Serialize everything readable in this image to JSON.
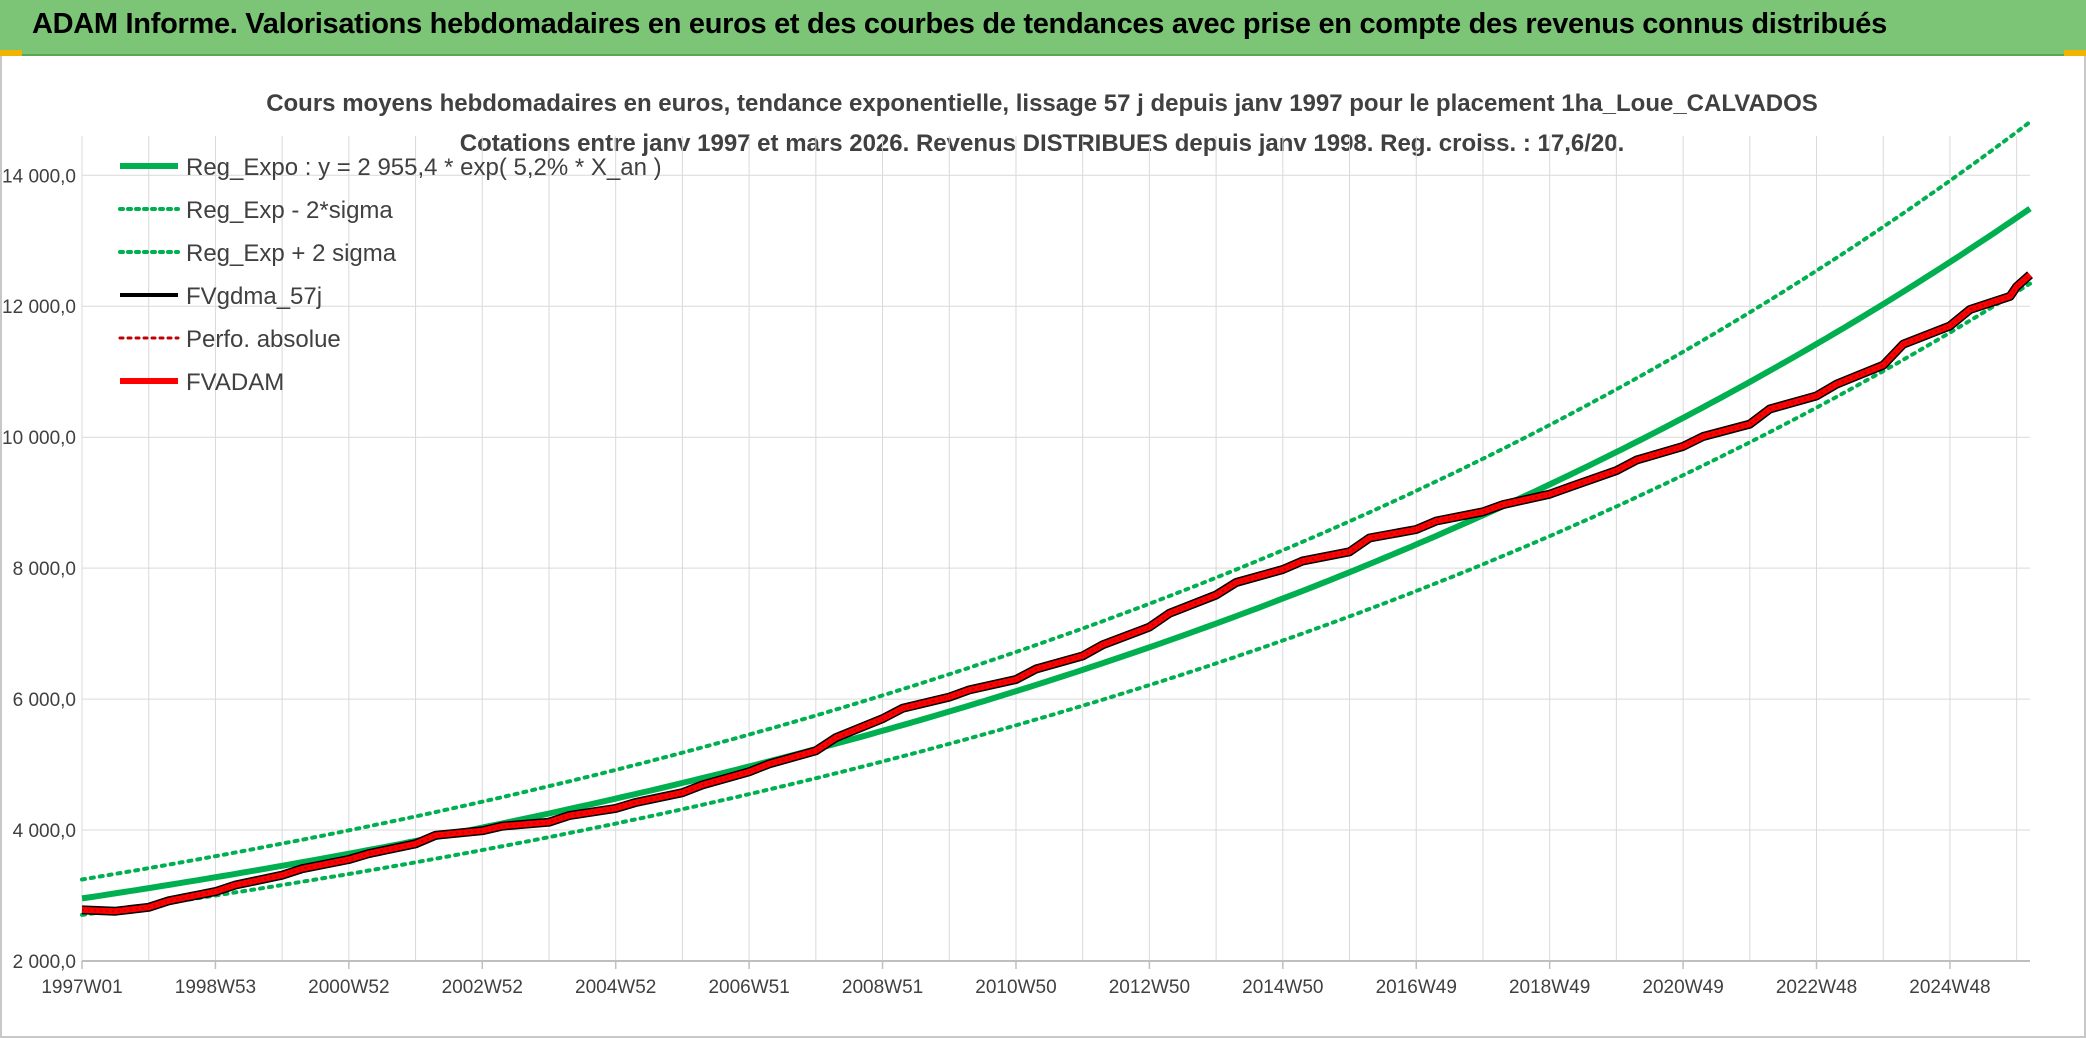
{
  "header": {
    "title": "ADAM Informe. Valorisations hebdomadaires en euros et des courbes de tendances avec prise en compte des revenus connus distribués"
  },
  "colors": {
    "header_bg": "#7cc576",
    "green": "#00b050",
    "red": "#ff0000",
    "darkred": "#c00000",
    "black": "#000000",
    "grid": "#d9d9d9"
  },
  "chart_data": {
    "type": "line",
    "title": "Cours moyens hebdomadaires en euros, tendance exponentielle, lissage 57 j depuis janv 1997 pour le placement 1ha_Loue_CALVADOS",
    "subtitle": "Cotations entre janv 1997 et mars 2026. Revenus DISTRIBUES depuis janv 1998. Reg. croiss. : 17,6/20.",
    "xlabel": "",
    "ylabel": "",
    "x_range_years": [
      1997.0,
      2026.2
    ],
    "ylim": [
      2000,
      14600
    ],
    "y_ticks": [
      2000,
      4000,
      6000,
      8000,
      10000,
      12000,
      14000
    ],
    "y_tick_labels": [
      "2 000,0",
      "4 000,0",
      "6 000,0",
      "8 000,0",
      "10 000,0",
      "12 000,0",
      "14 000,0"
    ],
    "x_ticks": [
      1997.0,
      1999.0,
      2001.0,
      2003.0,
      2005.0,
      2007.0,
      2009.0,
      2011.0,
      2013.0,
      2015.0,
      2017.0,
      2019.0,
      2021.0,
      2023.0,
      2025.0
    ],
    "x_tick_labels": [
      "1997W01",
      "1998W53",
      "2000W52",
      "2002W52",
      "2004W52",
      "2006W51",
      "2008W51",
      "2010W50",
      "2012W50",
      "2014W50",
      "2016W49",
      "2018W49",
      "2020W49",
      "2022W48",
      "2024W48"
    ],
    "legend_position": "top-left",
    "legend": [
      {
        "name": "Reg_Expo : y = 2 955,4 * exp( 5,2% *  X_an )",
        "style": "solid",
        "color": "#00b050",
        "width": 6
      },
      {
        "name": "Reg_Exp - 2*sigma",
        "style": "dotted",
        "color": "#00b050",
        "width": 4
      },
      {
        "name": "Reg_Exp + 2 sigma",
        "style": "dotted",
        "color": "#00b050",
        "width": 4
      },
      {
        "name": "FVgdma_57j",
        "style": "solid",
        "color": "#000000",
        "width": 4
      },
      {
        "name": "Perfo. absolue",
        "style": "dotted",
        "color": "#c00000",
        "width": 3
      },
      {
        "name": "FVADAM",
        "style": "solid",
        "color": "#ff0000",
        "width": 6
      }
    ],
    "series": [
      {
        "name": "Reg_Expo",
        "model": "exponential",
        "a": 2955.4,
        "rate": 0.052,
        "factor": 1.0
      },
      {
        "name": "Reg_Exp - 2*sigma",
        "model": "exponential",
        "a": 2955.4,
        "rate": 0.052,
        "factor": 0.915
      },
      {
        "name": "Reg_Exp + 2 sigma",
        "model": "exponential",
        "a": 2955.4,
        "rate": 0.052,
        "factor": 1.098
      },
      {
        "name": "FVADAM",
        "x": [
          1997.0,
          1997.5,
          1998.0,
          1998.3,
          1999.0,
          1999.3,
          2000.0,
          2000.3,
          2001.0,
          2001.3,
          2002.0,
          2002.3,
          2003.0,
          2003.3,
          2004.0,
          2004.3,
          2005.0,
          2005.3,
          2006.0,
          2006.3,
          2007.0,
          2007.3,
          2008.0,
          2008.3,
          2009.0,
          2009.3,
          2010.0,
          2010.3,
          2011.0,
          2011.3,
          2012.0,
          2012.3,
          2013.0,
          2013.3,
          2014.0,
          2014.3,
          2015.0,
          2015.3,
          2016.0,
          2016.3,
          2017.0,
          2017.3,
          2018.0,
          2018.3,
          2019.0,
          2019.3,
          2020.0,
          2020.3,
          2021.0,
          2021.3,
          2022.0,
          2022.3,
          2023.0,
          2023.3,
          2024.0,
          2024.3,
          2025.0,
          2025.3,
          2025.9,
          2026.0,
          2026.2
        ],
        "values": [
          2780,
          2760,
          2820,
          2920,
          3060,
          3160,
          3310,
          3410,
          3550,
          3640,
          3790,
          3920,
          3990,
          4060,
          4120,
          4220,
          4330,
          4420,
          4570,
          4690,
          4890,
          5010,
          5210,
          5410,
          5700,
          5860,
          6030,
          6140,
          6300,
          6460,
          6660,
          6830,
          7100,
          7310,
          7590,
          7780,
          7980,
          8110,
          8250,
          8460,
          8590,
          8720,
          8860,
          8970,
          9130,
          9240,
          9490,
          9650,
          9860,
          10010,
          10200,
          10430,
          10630,
          10810,
          11100,
          11420,
          11700,
          11950,
          12150,
          12300,
          12480
        ]
      }
    ]
  }
}
